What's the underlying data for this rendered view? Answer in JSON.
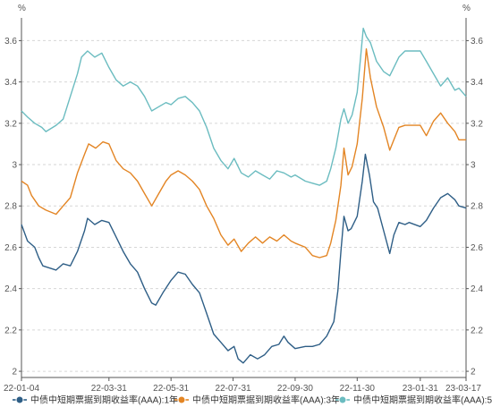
{
  "chart_data": {
    "type": "line",
    "title": "",
    "xlabel": "",
    "ylabel": "%",
    "y_unit_left": "%",
    "y_unit_right": "%",
    "ylim": [
      1.97,
      3.71
    ],
    "y_ticks": [
      2,
      2.2,
      2.4,
      2.6,
      2.8,
      3,
      3.2,
      3.4,
      3.6
    ],
    "y_tick_labels": [
      "2",
      "2.2",
      "2.4",
      "2.6",
      "2.8",
      "3",
      "3.2",
      "3.4",
      "3.6"
    ],
    "xlim": [
      "2022-01-04",
      "2023-03-17"
    ],
    "x_ticks": [
      "2022-01-04",
      "2022-03-31",
      "2022-05-31",
      "2022-07-31",
      "2022-09-30",
      "2022-11-30",
      "2023-01-31",
      "2023-03-17"
    ],
    "x_tick_labels": [
      "22-01-04",
      "22-03-31",
      "22-05-31",
      "22-07-31",
      "22-09-30",
      "22-11-30",
      "23-01-31",
      "23-03-17"
    ],
    "grid": "horizontal-dashed",
    "legend_position": "bottom",
    "series": [
      {
        "name": "中债中短期票据到期收益率(AAA):1年",
        "color": "#2e5e86",
        "points": [
          [
            "2022-01-04",
            2.71
          ],
          [
            "2022-01-10",
            2.63
          ],
          [
            "2022-01-17",
            2.6
          ],
          [
            "2022-01-21",
            2.55
          ],
          [
            "2022-01-25",
            2.51
          ],
          [
            "2022-02-07",
            2.49
          ],
          [
            "2022-02-14",
            2.52
          ],
          [
            "2022-02-21",
            2.51
          ],
          [
            "2022-02-28",
            2.58
          ],
          [
            "2022-03-07",
            2.68
          ],
          [
            "2022-03-10",
            2.74
          ],
          [
            "2022-03-17",
            2.71
          ],
          [
            "2022-03-24",
            2.73
          ],
          [
            "2022-03-31",
            2.72
          ],
          [
            "2022-04-07",
            2.65
          ],
          [
            "2022-04-14",
            2.58
          ],
          [
            "2022-04-21",
            2.52
          ],
          [
            "2022-04-28",
            2.48
          ],
          [
            "2022-05-05",
            2.4
          ],
          [
            "2022-05-12",
            2.33
          ],
          [
            "2022-05-16",
            2.32
          ],
          [
            "2022-05-23",
            2.38
          ],
          [
            "2022-05-31",
            2.44
          ],
          [
            "2022-06-07",
            2.48
          ],
          [
            "2022-06-14",
            2.47
          ],
          [
            "2022-06-21",
            2.42
          ],
          [
            "2022-06-28",
            2.38
          ],
          [
            "2022-07-05",
            2.28
          ],
          [
            "2022-07-12",
            2.18
          ],
          [
            "2022-07-19",
            2.14
          ],
          [
            "2022-07-26",
            2.1
          ],
          [
            "2022-08-01",
            2.12
          ],
          [
            "2022-08-05",
            2.06
          ],
          [
            "2022-08-10",
            2.04
          ],
          [
            "2022-08-17",
            2.08
          ],
          [
            "2022-08-24",
            2.06
          ],
          [
            "2022-08-31",
            2.08
          ],
          [
            "2022-09-07",
            2.12
          ],
          [
            "2022-09-14",
            2.13
          ],
          [
            "2022-09-19",
            2.17
          ],
          [
            "2022-09-23",
            2.14
          ],
          [
            "2022-09-30",
            2.11
          ],
          [
            "2022-10-10",
            2.12
          ],
          [
            "2022-10-17",
            2.12
          ],
          [
            "2022-10-24",
            2.13
          ],
          [
            "2022-10-31",
            2.17
          ],
          [
            "2022-11-07",
            2.24
          ],
          [
            "2022-11-11",
            2.39
          ],
          [
            "2022-11-14",
            2.58
          ],
          [
            "2022-11-17",
            2.75
          ],
          [
            "2022-11-21",
            2.68
          ],
          [
            "2022-11-24",
            2.69
          ],
          [
            "2022-11-30",
            2.75
          ],
          [
            "2022-12-05",
            2.92
          ],
          [
            "2022-12-08",
            3.05
          ],
          [
            "2022-12-12",
            2.95
          ],
          [
            "2022-12-16",
            2.82
          ],
          [
            "2022-12-20",
            2.79
          ],
          [
            "2022-12-26",
            2.68
          ],
          [
            "2023-01-01",
            2.57
          ],
          [
            "2023-01-05",
            2.66
          ],
          [
            "2023-01-10",
            2.72
          ],
          [
            "2023-01-16",
            2.71
          ],
          [
            "2023-01-20",
            2.72
          ],
          [
            "2023-01-31",
            2.7
          ],
          [
            "2023-02-06",
            2.73
          ],
          [
            "2023-02-13",
            2.79
          ],
          [
            "2023-02-20",
            2.84
          ],
          [
            "2023-02-27",
            2.86
          ],
          [
            "2023-03-06",
            2.83
          ],
          [
            "2023-03-10",
            2.8
          ],
          [
            "2023-03-17",
            2.79
          ]
        ]
      },
      {
        "name": "中债中短期票据到期收益率(AAA):3年",
        "color": "#e38524",
        "points": [
          [
            "2022-01-04",
            2.92
          ],
          [
            "2022-01-10",
            2.9
          ],
          [
            "2022-01-14",
            2.85
          ],
          [
            "2022-01-21",
            2.8
          ],
          [
            "2022-01-28",
            2.78
          ],
          [
            "2022-02-07",
            2.76
          ],
          [
            "2022-02-14",
            2.8
          ],
          [
            "2022-02-21",
            2.84
          ],
          [
            "2022-02-28",
            2.96
          ],
          [
            "2022-03-07",
            3.05
          ],
          [
            "2022-03-11",
            3.1
          ],
          [
            "2022-03-18",
            3.08
          ],
          [
            "2022-03-25",
            3.11
          ],
          [
            "2022-03-31",
            3.1
          ],
          [
            "2022-04-07",
            3.02
          ],
          [
            "2022-04-14",
            2.98
          ],
          [
            "2022-04-21",
            2.96
          ],
          [
            "2022-04-28",
            2.92
          ],
          [
            "2022-05-05",
            2.86
          ],
          [
            "2022-05-12",
            2.8
          ],
          [
            "2022-05-19",
            2.86
          ],
          [
            "2022-05-26",
            2.92
          ],
          [
            "2022-05-31",
            2.95
          ],
          [
            "2022-06-07",
            2.97
          ],
          [
            "2022-06-14",
            2.95
          ],
          [
            "2022-06-21",
            2.92
          ],
          [
            "2022-06-28",
            2.88
          ],
          [
            "2022-07-05",
            2.8
          ],
          [
            "2022-07-12",
            2.74
          ],
          [
            "2022-07-19",
            2.66
          ],
          [
            "2022-07-26",
            2.61
          ],
          [
            "2022-08-01",
            2.64
          ],
          [
            "2022-08-08",
            2.58
          ],
          [
            "2022-08-15",
            2.62
          ],
          [
            "2022-08-22",
            2.65
          ],
          [
            "2022-08-29",
            2.62
          ],
          [
            "2022-09-05",
            2.65
          ],
          [
            "2022-09-12",
            2.63
          ],
          [
            "2022-09-19",
            2.66
          ],
          [
            "2022-09-26",
            2.63
          ],
          [
            "2022-09-30",
            2.62
          ],
          [
            "2022-10-10",
            2.6
          ],
          [
            "2022-10-17",
            2.56
          ],
          [
            "2022-10-24",
            2.55
          ],
          [
            "2022-10-31",
            2.56
          ],
          [
            "2022-11-04",
            2.62
          ],
          [
            "2022-11-09",
            2.73
          ],
          [
            "2022-11-14",
            2.9
          ],
          [
            "2022-11-17",
            3.08
          ],
          [
            "2022-11-21",
            2.95
          ],
          [
            "2022-11-25",
            2.99
          ],
          [
            "2022-11-30",
            3.1
          ],
          [
            "2022-12-05",
            3.32
          ],
          [
            "2022-12-09",
            3.56
          ],
          [
            "2022-12-13",
            3.42
          ],
          [
            "2022-12-19",
            3.28
          ],
          [
            "2022-12-26",
            3.18
          ],
          [
            "2023-01-01",
            3.07
          ],
          [
            "2023-01-05",
            3.12
          ],
          [
            "2023-01-10",
            3.18
          ],
          [
            "2023-01-16",
            3.19
          ],
          [
            "2023-01-31",
            3.19
          ],
          [
            "2023-02-06",
            3.14
          ],
          [
            "2023-02-13",
            3.21
          ],
          [
            "2023-02-20",
            3.25
          ],
          [
            "2023-02-27",
            3.2
          ],
          [
            "2023-03-06",
            3.16
          ],
          [
            "2023-03-10",
            3.12
          ],
          [
            "2023-03-17",
            3.12
          ]
        ]
      },
      {
        "name": "中债中短期票据到期收益率(AAA):5年",
        "color": "#6bbcc0",
        "points": [
          [
            "2022-01-04",
            3.26
          ],
          [
            "2022-01-10",
            3.23
          ],
          [
            "2022-01-17",
            3.2
          ],
          [
            "2022-01-24",
            3.18
          ],
          [
            "2022-01-28",
            3.16
          ],
          [
            "2022-02-07",
            3.19
          ],
          [
            "2022-02-14",
            3.22
          ],
          [
            "2022-02-21",
            3.33
          ],
          [
            "2022-02-28",
            3.44
          ],
          [
            "2022-03-04",
            3.52
          ],
          [
            "2022-03-10",
            3.55
          ],
          [
            "2022-03-17",
            3.52
          ],
          [
            "2022-03-24",
            3.54
          ],
          [
            "2022-03-31",
            3.47
          ],
          [
            "2022-04-07",
            3.41
          ],
          [
            "2022-04-14",
            3.38
          ],
          [
            "2022-04-21",
            3.4
          ],
          [
            "2022-04-28",
            3.38
          ],
          [
            "2022-05-05",
            3.33
          ],
          [
            "2022-05-12",
            3.26
          ],
          [
            "2022-05-19",
            3.28
          ],
          [
            "2022-05-26",
            3.3
          ],
          [
            "2022-05-31",
            3.29
          ],
          [
            "2022-06-07",
            3.32
          ],
          [
            "2022-06-14",
            3.33
          ],
          [
            "2022-06-21",
            3.3
          ],
          [
            "2022-06-28",
            3.26
          ],
          [
            "2022-07-05",
            3.18
          ],
          [
            "2022-07-12",
            3.08
          ],
          [
            "2022-07-19",
            3.02
          ],
          [
            "2022-07-26",
            2.98
          ],
          [
            "2022-08-01",
            3.03
          ],
          [
            "2022-08-08",
            2.96
          ],
          [
            "2022-08-15",
            2.94
          ],
          [
            "2022-08-22",
            2.97
          ],
          [
            "2022-08-29",
            2.95
          ],
          [
            "2022-09-05",
            2.93
          ],
          [
            "2022-09-12",
            2.97
          ],
          [
            "2022-09-19",
            2.96
          ],
          [
            "2022-09-26",
            2.94
          ],
          [
            "2022-09-30",
            2.95
          ],
          [
            "2022-10-10",
            2.92
          ],
          [
            "2022-10-17",
            2.91
          ],
          [
            "2022-10-24",
            2.9
          ],
          [
            "2022-10-31",
            2.92
          ],
          [
            "2022-11-04",
            2.98
          ],
          [
            "2022-11-09",
            3.08
          ],
          [
            "2022-11-14",
            3.22
          ],
          [
            "2022-11-17",
            3.27
          ],
          [
            "2022-11-21",
            3.2
          ],
          [
            "2022-11-25",
            3.24
          ],
          [
            "2022-11-30",
            3.35
          ],
          [
            "2022-12-03",
            3.5
          ],
          [
            "2022-12-06",
            3.66
          ],
          [
            "2022-12-09",
            3.62
          ],
          [
            "2022-12-13",
            3.59
          ],
          [
            "2022-12-19",
            3.5
          ],
          [
            "2022-12-26",
            3.45
          ],
          [
            "2023-01-01",
            3.43
          ],
          [
            "2023-01-05",
            3.47
          ],
          [
            "2023-01-10",
            3.52
          ],
          [
            "2023-01-16",
            3.55
          ],
          [
            "2023-01-31",
            3.55
          ],
          [
            "2023-02-06",
            3.5
          ],
          [
            "2023-02-13",
            3.44
          ],
          [
            "2023-02-20",
            3.38
          ],
          [
            "2023-02-27",
            3.42
          ],
          [
            "2023-03-06",
            3.36
          ],
          [
            "2023-03-10",
            3.37
          ],
          [
            "2023-03-17",
            3.33
          ]
        ]
      }
    ]
  }
}
